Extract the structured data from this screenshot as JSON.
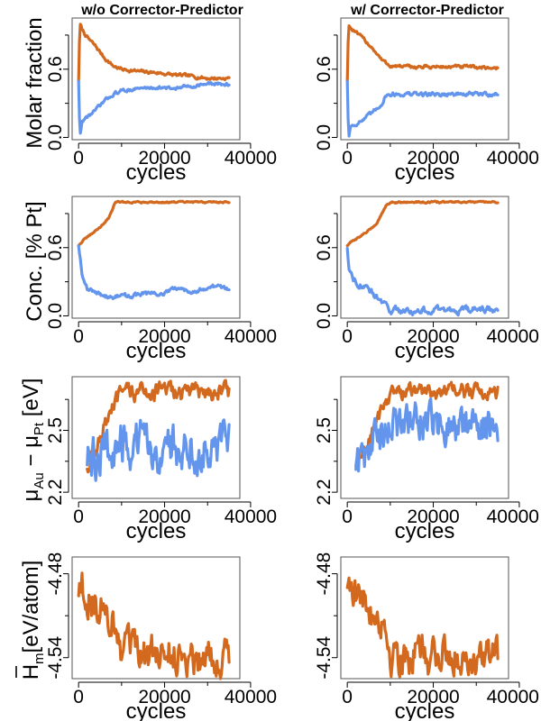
{
  "colors": {
    "orange": "#D2691E",
    "blue": "#6495ED"
  },
  "column_titles": [
    "w/o Corrector-Predictor",
    "w/ Corrector-Predictor"
  ],
  "ylabels": {
    "row0": "Molar fraction",
    "row1": "Conc. [% Pt]",
    "row2": {
      "main": "μ",
      "sub1": "Au",
      "minus": " − μ",
      "sub2": "Pt",
      "unit": " [eV]"
    },
    "row3": {
      "main": "H",
      "sub": "m",
      "unit": "[eV/atom]"
    }
  },
  "chart_data": [
    {
      "type": "line",
      "row": 0,
      "col": 0,
      "title": "w/o Corrector-Predictor",
      "xlabel": "cycles",
      "ylabel": "Molar fraction",
      "xlim": [
        -1500,
        37500
      ],
      "ylim": [
        -0.02,
        1.05
      ],
      "xticks": [
        0,
        20000,
        40000
      ],
      "xtick_labels": [
        "0",
        "20000",
        "40000"
      ],
      "yticks": [
        0.0,
        0.6
      ],
      "ytick_labels": [
        "0.0",
        "0.6"
      ],
      "series": [
        {
          "name": "orange",
          "color": "orange",
          "noise": 0.012,
          "x": [
            0,
            300,
            800,
            2000,
            4000,
            6000,
            8000,
            10000,
            14000,
            18000,
            22000,
            26000,
            30000,
            35000
          ],
          "y": [
            0.5,
            1.0,
            0.95,
            0.88,
            0.8,
            0.7,
            0.63,
            0.6,
            0.58,
            0.57,
            0.55,
            0.54,
            0.52,
            0.52
          ]
        },
        {
          "name": "blue",
          "color": "blue",
          "noise": 0.012,
          "x": [
            0,
            300,
            800,
            2000,
            4000,
            6000,
            8000,
            10000,
            14000,
            18000,
            22000,
            26000,
            30000,
            35000
          ],
          "y": [
            0.5,
            0.0,
            0.14,
            0.18,
            0.24,
            0.32,
            0.38,
            0.41,
            0.43,
            0.44,
            0.43,
            0.45,
            0.47,
            0.47
          ]
        }
      ]
    },
    {
      "type": "line",
      "row": 0,
      "col": 1,
      "title": "w/ Corrector-Predictor",
      "xlabel": "cycles",
      "ylabel": "Molar fraction",
      "xlim": [
        -1500,
        37500
      ],
      "ylim": [
        -0.02,
        1.05
      ],
      "xticks": [
        0,
        20000,
        40000
      ],
      "xtick_labels": [
        "0",
        "20000",
        "40000"
      ],
      "yticks": [
        0.0,
        0.6
      ],
      "ytick_labels": [
        "0.0",
        "0.6"
      ],
      "series": [
        {
          "name": "orange",
          "color": "orange",
          "noise": 0.012,
          "x": [
            0,
            300,
            800,
            2000,
            4000,
            6000,
            8000,
            10000,
            14000,
            20000,
            28000,
            35000
          ],
          "y": [
            0.5,
            1.0,
            0.96,
            0.92,
            0.86,
            0.78,
            0.68,
            0.63,
            0.62,
            0.62,
            0.62,
            0.61
          ]
        },
        {
          "name": "blue",
          "color": "blue",
          "noise": 0.015,
          "x": [
            0,
            300,
            800,
            2000,
            4000,
            6000,
            8000,
            9000,
            10000,
            14000,
            20000,
            28000,
            35000
          ],
          "y": [
            0.5,
            0.0,
            0.1,
            0.12,
            0.16,
            0.22,
            0.3,
            0.37,
            0.38,
            0.38,
            0.38,
            0.38,
            0.38
          ]
        }
      ]
    },
    {
      "type": "line",
      "row": 1,
      "col": 0,
      "xlabel": "cycles",
      "ylabel": "Conc. [% Pt]",
      "xlim": [
        -1500,
        37500
      ],
      "ylim": [
        -0.02,
        1.05
      ],
      "xticks": [
        0,
        20000,
        40000
      ],
      "xtick_labels": [
        "0",
        "20000",
        "40000"
      ],
      "yticks": [
        0.0,
        0.6
      ],
      "ytick_labels": [
        "0.0",
        "0.6"
      ],
      "series": [
        {
          "name": "orange",
          "color": "orange",
          "noise": 0.006,
          "x": [
            0,
            1000,
            3000,
            5000,
            7000,
            8000,
            8500,
            9000,
            15000,
            25000,
            35000
          ],
          "y": [
            0.62,
            0.66,
            0.72,
            0.78,
            0.86,
            0.95,
            1.0,
            1.0,
            1.0,
            1.0,
            1.0
          ]
        },
        {
          "name": "blue",
          "color": "blue",
          "noise": 0.015,
          "x": [
            0,
            800,
            2000,
            4000,
            6000,
            8000,
            10000,
            12000,
            14000,
            16000,
            18000,
            20000,
            22000,
            24000,
            26000,
            28000,
            30000,
            32000,
            35000
          ],
          "y": [
            0.62,
            0.38,
            0.24,
            0.2,
            0.18,
            0.16,
            0.18,
            0.17,
            0.19,
            0.2,
            0.19,
            0.2,
            0.23,
            0.24,
            0.22,
            0.23,
            0.25,
            0.26,
            0.24
          ]
        }
      ]
    },
    {
      "type": "line",
      "row": 1,
      "col": 1,
      "xlabel": "cycles",
      "ylabel": "Conc. [% Pt]",
      "xlim": [
        -1500,
        37500
      ],
      "ylim": [
        -0.02,
        1.05
      ],
      "xticks": [
        0,
        20000,
        40000
      ],
      "xtick_labels": [
        "0",
        "20000",
        "40000"
      ],
      "yticks": [
        0.0,
        0.6
      ],
      "ytick_labels": [
        "0.0",
        "0.6"
      ],
      "series": [
        {
          "name": "orange",
          "color": "orange",
          "noise": 0.006,
          "x": [
            0,
            1000,
            3000,
            5000,
            7000,
            8000,
            9000,
            10000,
            15000,
            25000,
            35000
          ],
          "y": [
            0.62,
            0.65,
            0.7,
            0.75,
            0.82,
            0.9,
            0.97,
            1.0,
            1.0,
            1.0,
            1.0
          ]
        },
        {
          "name": "blue",
          "color": "blue",
          "noise": 0.025,
          "x": [
            0,
            500,
            1500,
            3000,
            5000,
            7000,
            8500,
            10000,
            12000,
            16000,
            22000,
            28000,
            35000
          ],
          "y": [
            0.6,
            0.4,
            0.33,
            0.28,
            0.22,
            0.16,
            0.1,
            0.05,
            0.05,
            0.04,
            0.05,
            0.05,
            0.06
          ]
        }
      ]
    },
    {
      "type": "line",
      "row": 2,
      "col": 0,
      "xlabel": "cycles",
      "xlim": [
        -1500,
        37500
      ],
      "ylim": [
        2.17,
        2.76
      ],
      "xticks": [
        0,
        20000,
        40000
      ],
      "xtick_labels": [
        "0",
        "20000",
        "40000"
      ],
      "yticks": [
        2.2,
        2.5
      ],
      "ytick_labels": [
        "2.2",
        "2.5"
      ],
      "series": [
        {
          "name": "orange",
          "color": "orange",
          "noise": 0.035,
          "x": [
            2000,
            4000,
            6000,
            8000,
            10000,
            15000,
            25000,
            35000
          ],
          "y": [
            2.32,
            2.42,
            2.52,
            2.6,
            2.68,
            2.69,
            2.69,
            2.69
          ]
        },
        {
          "name": "blue",
          "color": "blue",
          "noise": 0.09,
          "x": [
            2000,
            6000,
            10000,
            20000,
            30000,
            35000
          ],
          "y": [
            2.35,
            2.4,
            2.42,
            2.42,
            2.42,
            2.41
          ]
        }
      ]
    },
    {
      "type": "line",
      "row": 2,
      "col": 1,
      "xlabel": "cycles",
      "xlim": [
        -1500,
        37500
      ],
      "ylim": [
        2.17,
        2.76
      ],
      "xticks": [
        0,
        20000,
        40000
      ],
      "xtick_labels": [
        "0",
        "20000",
        "40000"
      ],
      "yticks": [
        2.2,
        2.5
      ],
      "ytick_labels": [
        "2.2",
        "2.5"
      ],
      "series": [
        {
          "name": "orange",
          "color": "orange",
          "noise": 0.03,
          "x": [
            2000,
            4000,
            6000,
            8000,
            10000,
            15000,
            25000,
            35000
          ],
          "y": [
            2.33,
            2.4,
            2.5,
            2.6,
            2.68,
            2.69,
            2.69,
            2.69
          ]
        },
        {
          "name": "blue",
          "color": "blue",
          "noise": 0.08,
          "x": [
            2000,
            4000,
            6000,
            8000,
            10000,
            15000,
            25000,
            35000
          ],
          "y": [
            2.32,
            2.36,
            2.42,
            2.48,
            2.52,
            2.53,
            2.53,
            2.52
          ]
        }
      ]
    },
    {
      "type": "line",
      "row": 3,
      "col": 0,
      "xlabel": "cycles",
      "xlim": [
        -1500,
        37500
      ],
      "ylim": [
        -4.555,
        -4.468
      ],
      "xticks": [
        0,
        20000,
        40000
      ],
      "xtick_labels": [
        "0",
        "20000",
        "40000"
      ],
      "yticks": [
        -4.54,
        -4.48
      ],
      "ytick_labels": [
        "-4.54",
        "-4.48"
      ],
      "series": [
        {
          "name": "orange",
          "color": "orange",
          "noise": 0.011,
          "x": [
            0,
            500,
            3000,
            6000,
            8500,
            9000,
            10000,
            15000,
            25000,
            35000
          ],
          "y": [
            -4.495,
            -4.485,
            -4.5,
            -4.507,
            -4.512,
            -4.535,
            -4.537,
            -4.538,
            -4.538,
            -4.539
          ]
        }
      ]
    },
    {
      "type": "line",
      "row": 3,
      "col": 1,
      "xlabel": "cycles",
      "xlim": [
        -1500,
        37500
      ],
      "ylim": [
        -4.555,
        -4.468
      ],
      "xticks": [
        0,
        20000,
        40000
      ],
      "xtick_labels": [
        "0",
        "20000",
        "40000"
      ],
      "yticks": [
        -4.54,
        -4.48
      ],
      "ytick_labels": [
        "-4.54",
        "-4.48"
      ],
      "series": [
        {
          "name": "orange",
          "color": "orange",
          "noise": 0.011,
          "x": [
            0,
            500,
            3000,
            6000,
            8500,
            9500,
            10000,
            15000,
            25000,
            35000
          ],
          "y": [
            -4.49,
            -4.482,
            -4.5,
            -4.507,
            -4.512,
            -4.533,
            -4.537,
            -4.538,
            -4.538,
            -4.539
          ]
        }
      ]
    }
  ]
}
